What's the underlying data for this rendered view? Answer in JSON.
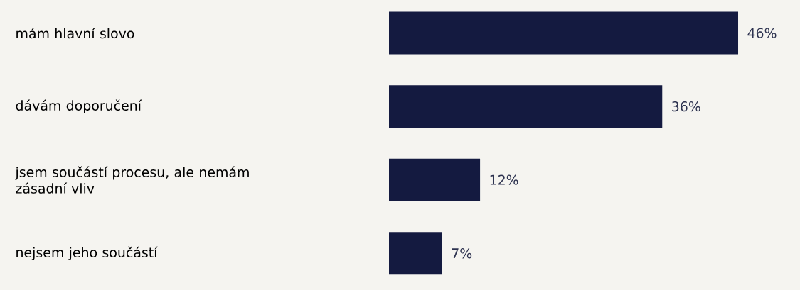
{
  "chart_data": {
    "type": "bar",
    "orientation": "horizontal",
    "categories": [
      "mám hlavní slovo",
      "dávám doporučení",
      "jsem součástí procesu, ale nemám zásadní vliv",
      "nejsem jeho součástí"
    ],
    "values": [
      46,
      36,
      12,
      7
    ],
    "value_labels": [
      "46%",
      "36%",
      "12%",
      "7%"
    ],
    "color": "#141a40"
  }
}
